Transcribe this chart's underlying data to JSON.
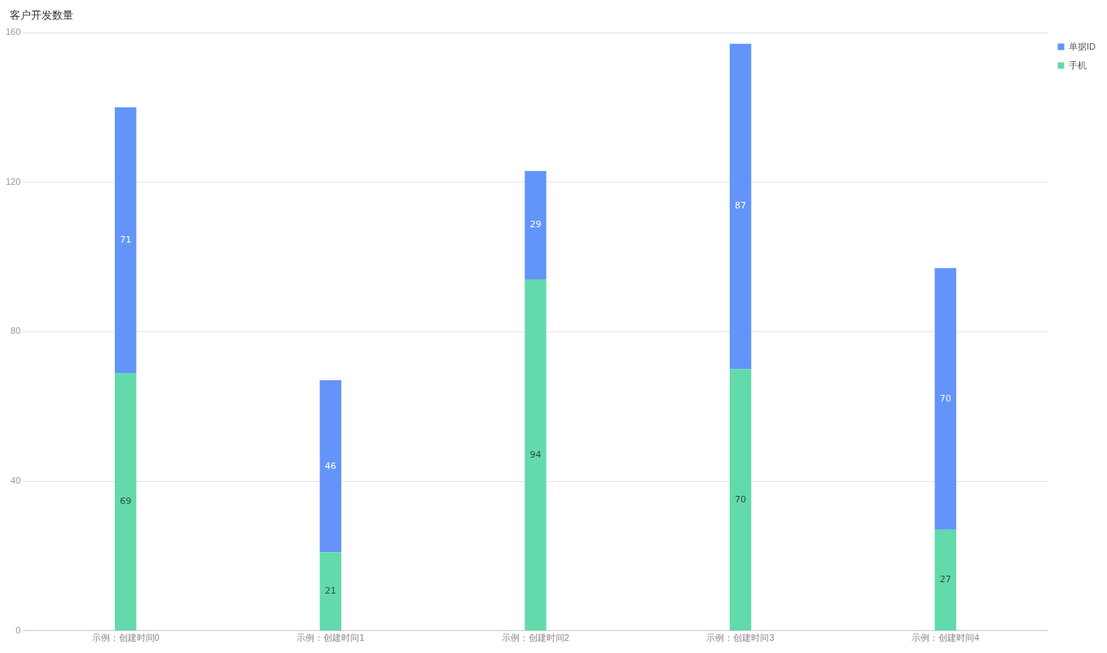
{
  "chart_data": {
    "type": "bar",
    "title": "客户开发数量",
    "categories": [
      "示例：创建时间0",
      "示例：创建时间1",
      "示例：创建时间2",
      "示例：创建时间3",
      "示例：创建时间4"
    ],
    "stacked": true,
    "data_labels": true,
    "grid": "y",
    "legend": "top right",
    "ylim": [
      0,
      160
    ],
    "yticks": [
      0,
      40,
      80,
      120,
      160
    ],
    "series": [
      {
        "name": "手机",
        "color": "#62daab",
        "values": [
          69,
          21,
          94,
          70,
          27
        ]
      },
      {
        "name": "单据ID",
        "color": "#6394f9",
        "values": [
          71,
          46,
          29,
          87,
          70
        ]
      }
    ]
  }
}
